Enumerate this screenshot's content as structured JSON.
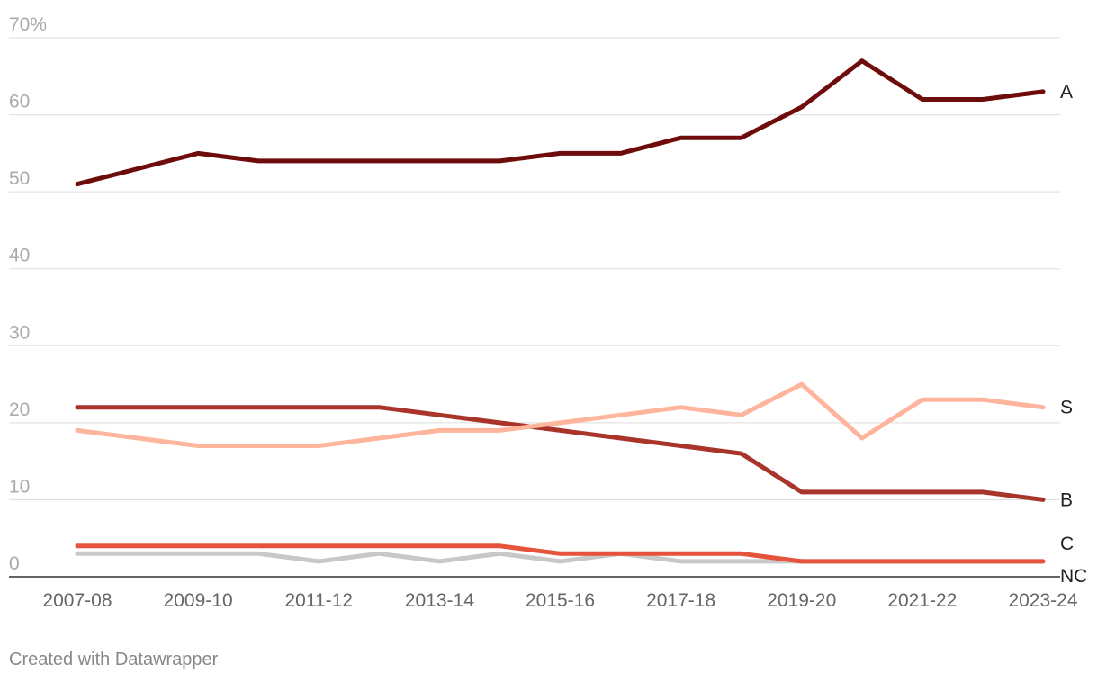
{
  "chart_data": {
    "type": "line",
    "x": [
      "2007-08",
      "2008-09",
      "2009-10",
      "2010-11",
      "2011-12",
      "2012-13",
      "2013-14",
      "2014-15",
      "2015-16",
      "2016-17",
      "2017-18",
      "2018-19",
      "2019-20",
      "2020-21",
      "2021-22",
      "2022-23",
      "2023-24"
    ],
    "x_tick_labels": [
      "2007-08",
      "2009-10",
      "2011-12",
      "2013-14",
      "2015-16",
      "2017-18",
      "2019-20",
      "2021-22",
      "2023-24"
    ],
    "y_tick_labels": [
      "70%",
      "60",
      "50",
      "40",
      "30",
      "20",
      "10",
      "0"
    ],
    "ylim": [
      0,
      70
    ],
    "grid": true,
    "series": [
      {
        "name": "A",
        "color": "#6e0b0b",
        "values": [
          51,
          53,
          55,
          54,
          54,
          54,
          54,
          54,
          55,
          55,
          57,
          57,
          61,
          67,
          62,
          62,
          63
        ]
      },
      {
        "name": "S",
        "color": "#ffb59d",
        "values": [
          19,
          18,
          17,
          17,
          17,
          18,
          19,
          19,
          20,
          21,
          22,
          21,
          25,
          18,
          23,
          23,
          22
        ]
      },
      {
        "name": "B",
        "color": "#a8342a",
        "values": [
          22,
          22,
          22,
          22,
          22,
          22,
          21,
          20,
          19,
          18,
          17,
          16,
          11,
          11,
          11,
          11,
          10
        ]
      },
      {
        "name": "C",
        "color": "#e5533a",
        "values": [
          4,
          4,
          4,
          4,
          4,
          4,
          4,
          4,
          3,
          3,
          3,
          3,
          2,
          2,
          2,
          2,
          2
        ]
      },
      {
        "name": "NC",
        "color": "#c8c8c8",
        "values": [
          3,
          3,
          3,
          3,
          2,
          3,
          2,
          3,
          2,
          3,
          2,
          2,
          2,
          2,
          2,
          2,
          2
        ]
      }
    ]
  },
  "footer": "Created with Datawrapper"
}
